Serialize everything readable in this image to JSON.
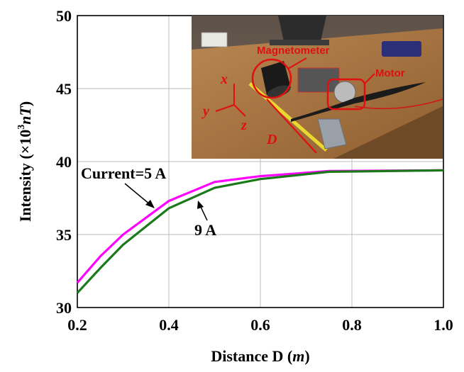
{
  "chart_data": {
    "type": "line",
    "xlabel_parts": {
      "main": "Distance D (",
      "unit": "m",
      "close": ")"
    },
    "ylabel_parts": {
      "main": "Intensity (×10",
      "sup": "3",
      "unit": "nT",
      "close": ")"
    },
    "xlim": [
      0.2,
      1.0
    ],
    "ylim": [
      30,
      50
    ],
    "x_ticks": [
      "0.2",
      "0.4",
      "0.6",
      "0.8",
      "1.0"
    ],
    "y_ticks": [
      "30",
      "35",
      "40",
      "45",
      "50"
    ],
    "grid": true,
    "series": [
      {
        "name": "Current=5 A",
        "color": "#ff00ff",
        "x": [
          0.2,
          0.25,
          0.3,
          0.4,
          0.5,
          0.6,
          0.75,
          1.0
        ],
        "y": [
          31.7,
          33.5,
          35.0,
          37.3,
          38.6,
          39.0,
          39.35,
          39.4
        ]
      },
      {
        "name": "9 A",
        "color": "#1a7a1a",
        "x": [
          0.2,
          0.25,
          0.3,
          0.4,
          0.5,
          0.6,
          0.75,
          1.0
        ],
        "y": [
          31.0,
          32.7,
          34.3,
          36.8,
          38.2,
          38.8,
          39.3,
          39.4
        ]
      }
    ],
    "annotations": [
      {
        "text": "Current=5 A",
        "series": 0
      },
      {
        "text": "9 A",
        "series": 1
      }
    ]
  },
  "inset_photo": {
    "labels": {
      "magnetometer": "Magnetometer",
      "motor": "Motor",
      "axis_x": "x",
      "axis_y": "y",
      "axis_z": "z",
      "distance": "D"
    },
    "colors": {
      "label": "#e01010",
      "table": "#a8743f"
    }
  }
}
